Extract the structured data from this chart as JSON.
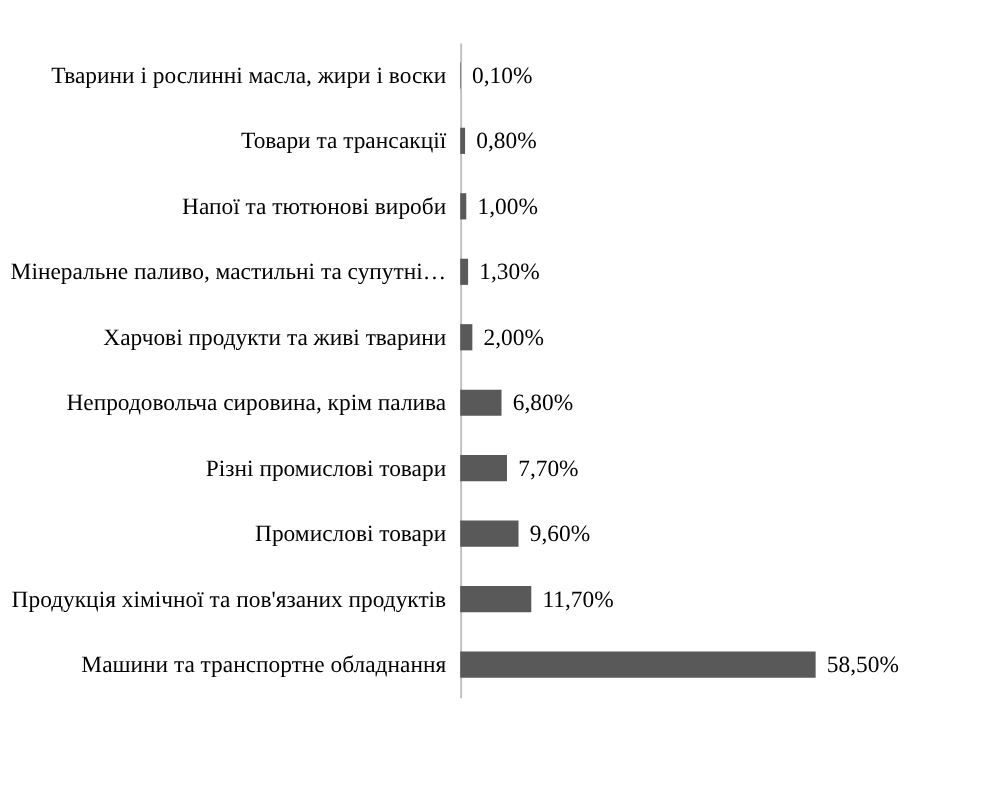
{
  "chart_data": {
    "type": "bar",
    "orientation": "horizontal",
    "categories": [
      "Тварини і рослинні масла, жири і воски",
      "Товари та трансакції",
      "Напої та тютюнові вироби",
      "Мінеральне паливо, мастильні та супутні…",
      "Харчові продукти та живі тварини",
      "Непродовольча сировина, крім палива",
      "Різні промислові товари",
      "Промислові товари",
      "Продукція хімічної та пов'язаних продуктів",
      "Машини та транспортне обладнання"
    ],
    "values": [
      0.1,
      0.8,
      1.0,
      1.3,
      2.0,
      6.8,
      7.7,
      9.6,
      11.7,
      58.5
    ],
    "value_labels": [
      "0,10%",
      "0,80%",
      "1,00%",
      "1,30%",
      "2,00%",
      "6,80%",
      "7,70%",
      "9,60%",
      "11,70%",
      "58,50%"
    ],
    "color": "#595959",
    "grid": false,
    "tick_labels": "y"
  }
}
